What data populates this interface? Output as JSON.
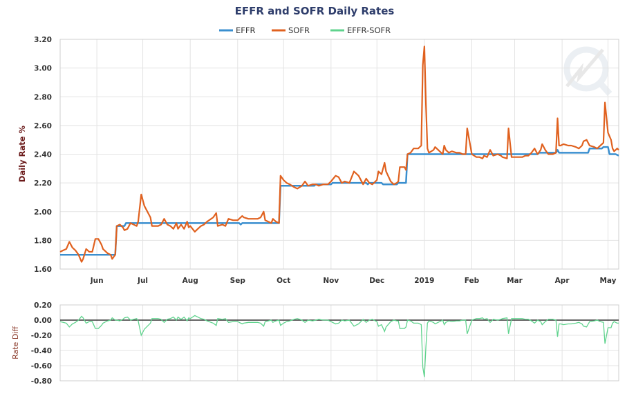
{
  "chart_data": [
    {
      "type": "line",
      "title": "EFFR and SOFR Daily Rates",
      "legend": [
        "EFFR",
        "SOFR",
        "EFFR-SOFR"
      ],
      "legend_position": "top",
      "ylabel": "Daily Rate %",
      "ylim": [
        1.6,
        3.2
      ],
      "yticks": [
        "1.60",
        "1.80",
        "2.00",
        "2.20",
        "2.40",
        "2.60",
        "2.80",
        "3.00",
        "3.20"
      ],
      "x_start": "2018-05-08",
      "x_unit": "days since 2018-05-08",
      "xlim": [
        0,
        365
      ],
      "xticks": [
        {
          "label": "Jun",
          "day": 24
        },
        {
          "label": "Jul",
          "day": 54
        },
        {
          "label": "Aug",
          "day": 85
        },
        {
          "label": "Sep",
          "day": 116
        },
        {
          "label": "Oct",
          "day": 146
        },
        {
          "label": "Nov",
          "day": 177
        },
        {
          "label": "Dec",
          "day": 207
        },
        {
          "label": "2019",
          "day": 238
        },
        {
          "label": "Feb",
          "day": 269
        },
        {
          "label": "Mar",
          "day": 297
        },
        {
          "label": "Apr",
          "day": 328
        },
        {
          "label": "May",
          "day": 358
        }
      ],
      "grid": true,
      "series": [
        {
          "name": "EFFR",
          "color": "#3a8fcf",
          "points": [
            [
              0,
              1.7
            ],
            [
              36,
              1.7
            ],
            [
              37,
              1.9
            ],
            [
              42,
              1.9
            ],
            [
              43,
              1.92
            ],
            [
              117,
              1.92
            ],
            [
              118,
              1.91
            ],
            [
              119,
              1.92
            ],
            [
              143,
              1.92
            ],
            [
              144,
              2.18
            ],
            [
              166,
              2.18
            ],
            [
              167,
              2.19
            ],
            [
              177,
              2.19
            ],
            [
              178,
              2.2
            ],
            [
              200,
              2.2
            ],
            [
              201,
              2.19
            ],
            [
              202,
              2.2
            ],
            [
              210,
              2.2
            ],
            [
              211,
              2.19
            ],
            [
              220,
              2.19
            ],
            [
              221,
              2.2
            ],
            [
              226,
              2.2
            ],
            [
              227,
              2.4
            ],
            [
              312,
              2.4
            ],
            [
              313,
              2.41
            ],
            [
              324,
              2.41
            ],
            [
              325,
              2.43
            ],
            [
              326,
              2.41
            ],
            [
              345,
              2.41
            ],
            [
              346,
              2.44
            ],
            [
              354,
              2.44
            ],
            [
              355,
              2.45
            ],
            [
              358,
              2.45
            ],
            [
              359,
              2.4
            ],
            [
              363,
              2.4
            ],
            [
              365,
              2.39
            ]
          ]
        },
        {
          "name": "SOFR",
          "color": "#e0611f",
          "points": [
            [
              0,
              1.72
            ],
            [
              2,
              1.73
            ],
            [
              4,
              1.74
            ],
            [
              6,
              1.79
            ],
            [
              8,
              1.75
            ],
            [
              10,
              1.73
            ],
            [
              12,
              1.7
            ],
            [
              14,
              1.65
            ],
            [
              15,
              1.67
            ],
            [
              17,
              1.74
            ],
            [
              19,
              1.72
            ],
            [
              21,
              1.72
            ],
            [
              23,
              1.81
            ],
            [
              25,
              1.81
            ],
            [
              27,
              1.77
            ],
            [
              28,
              1.74
            ],
            [
              31,
              1.71
            ],
            [
              33,
              1.7
            ],
            [
              34,
              1.67
            ],
            [
              36,
              1.7
            ],
            [
              37,
              1.9
            ],
            [
              39,
              1.91
            ],
            [
              41,
              1.89
            ],
            [
              42,
              1.87
            ],
            [
              44,
              1.88
            ],
            [
              46,
              1.92
            ],
            [
              48,
              1.91
            ],
            [
              50,
              1.9
            ],
            [
              51,
              1.93
            ],
            [
              53,
              2.12
            ],
            [
              55,
              2.04
            ],
            [
              57,
              2.0
            ],
            [
              59,
              1.96
            ],
            [
              60,
              1.9
            ],
            [
              64,
              1.9
            ],
            [
              66,
              1.91
            ],
            [
              68,
              1.95
            ],
            [
              70,
              1.91
            ],
            [
              72,
              1.9
            ],
            [
              74,
              1.88
            ],
            [
              76,
              1.92
            ],
            [
              77,
              1.88
            ],
            [
              79,
              1.91
            ],
            [
              81,
              1.88
            ],
            [
              83,
              1.93
            ],
            [
              84,
              1.89
            ],
            [
              85,
              1.9
            ],
            [
              88,
              1.86
            ],
            [
              90,
              1.88
            ],
            [
              92,
              1.9
            ],
            [
              94,
              1.91
            ],
            [
              96,
              1.93
            ],
            [
              100,
              1.96
            ],
            [
              102,
              1.99
            ],
            [
              103,
              1.9
            ],
            [
              106,
              1.91
            ],
            [
              108,
              1.9
            ],
            [
              110,
              1.95
            ],
            [
              113,
              1.94
            ],
            [
              116,
              1.94
            ],
            [
              119,
              1.97
            ],
            [
              120,
              1.96
            ],
            [
              123,
              1.95
            ],
            [
              129,
              1.95
            ],
            [
              131,
              1.96
            ],
            [
              133,
              2.0
            ],
            [
              134,
              1.94
            ],
            [
              138,
              1.92
            ],
            [
              139,
              1.95
            ],
            [
              141,
              1.93
            ],
            [
              143,
              1.92
            ],
            [
              144,
              2.25
            ],
            [
              146,
              2.22
            ],
            [
              148,
              2.2
            ],
            [
              150,
              2.19
            ],
            [
              153,
              2.17
            ],
            [
              155,
              2.16
            ],
            [
              158,
              2.18
            ],
            [
              160,
              2.21
            ],
            [
              162,
              2.18
            ],
            [
              165,
              2.19
            ],
            [
              167,
              2.19
            ],
            [
              169,
              2.18
            ],
            [
              172,
              2.19
            ],
            [
              175,
              2.19
            ],
            [
              177,
              2.21
            ],
            [
              180,
              2.25
            ],
            [
              182,
              2.24
            ],
            [
              184,
              2.2
            ],
            [
              186,
              2.21
            ],
            [
              189,
              2.2
            ],
            [
              192,
              2.28
            ],
            [
              195,
              2.25
            ],
            [
              198,
              2.19
            ],
            [
              200,
              2.23
            ],
            [
              202,
              2.2
            ],
            [
              204,
              2.19
            ],
            [
              207,
              2.22
            ],
            [
              208,
              2.28
            ],
            [
              210,
              2.26
            ],
            [
              212,
              2.34
            ],
            [
              213,
              2.28
            ],
            [
              216,
              2.21
            ],
            [
              218,
              2.19
            ],
            [
              220,
              2.2
            ],
            [
              221,
              2.21
            ],
            [
              222,
              2.31
            ],
            [
              225,
              2.31
            ],
            [
              226,
              2.29
            ],
            [
              227,
              2.4
            ],
            [
              229,
              2.41
            ],
            [
              231,
              2.44
            ],
            [
              234,
              2.44
            ],
            [
              236,
              2.46
            ],
            [
              237,
              3.02
            ],
            [
              238,
              3.15
            ],
            [
              239,
              2.75
            ],
            [
              240,
              2.44
            ],
            [
              241,
              2.41
            ],
            [
              244,
              2.43
            ],
            [
              245,
              2.45
            ],
            [
              248,
              2.42
            ],
            [
              250,
              2.4
            ],
            [
              251,
              2.46
            ],
            [
              252,
              2.43
            ],
            [
              254,
              2.41
            ],
            [
              256,
              2.42
            ],
            [
              259,
              2.41
            ],
            [
              261,
              2.41
            ],
            [
              263,
              2.4
            ],
            [
              265,
              2.4
            ],
            [
              266,
              2.58
            ],
            [
              268,
              2.46
            ],
            [
              269,
              2.4
            ],
            [
              272,
              2.38
            ],
            [
              274,
              2.38
            ],
            [
              276,
              2.37
            ],
            [
              277,
              2.39
            ],
            [
              279,
              2.38
            ],
            [
              281,
              2.43
            ],
            [
              283,
              2.39
            ],
            [
              286,
              2.4
            ],
            [
              288,
              2.39
            ],
            [
              289,
              2.38
            ],
            [
              292,
              2.37
            ],
            [
              293,
              2.58
            ],
            [
              295,
              2.38
            ],
            [
              297,
              2.38
            ],
            [
              299,
              2.38
            ],
            [
              302,
              2.38
            ],
            [
              304,
              2.39
            ],
            [
              306,
              2.39
            ],
            [
              308,
              2.41
            ],
            [
              310,
              2.44
            ],
            [
              312,
              2.4
            ],
            [
              314,
              2.43
            ],
            [
              315,
              2.47
            ],
            [
              317,
              2.43
            ],
            [
              319,
              2.4
            ],
            [
              322,
              2.4
            ],
            [
              324,
              2.41
            ],
            [
              325,
              2.65
            ],
            [
              326,
              2.46
            ],
            [
              327,
              2.46
            ],
            [
              329,
              2.47
            ],
            [
              332,
              2.46
            ],
            [
              334,
              2.46
            ],
            [
              337,
              2.45
            ],
            [
              339,
              2.44
            ],
            [
              341,
              2.46
            ],
            [
              342,
              2.49
            ],
            [
              344,
              2.5
            ],
            [
              346,
              2.46
            ],
            [
              349,
              2.45
            ],
            [
              351,
              2.44
            ],
            [
              353,
              2.46
            ],
            [
              355,
              2.48
            ],
            [
              356,
              2.76
            ],
            [
              358,
              2.55
            ],
            [
              360,
              2.5
            ],
            [
              361,
              2.44
            ],
            [
              362,
              2.42
            ],
            [
              364,
              2.44
            ],
            [
              365,
              2.43
            ]
          ]
        }
      ]
    },
    {
      "type": "line",
      "ylabel": "Rate Diff",
      "ylim": [
        -0.8,
        0.2
      ],
      "yticks": [
        "0.20",
        "0.00",
        "-0.20",
        "-0.40",
        "-0.60",
        "-0.80"
      ],
      "series": [
        {
          "name": "EFFR-SOFR",
          "color": "#5fd38d",
          "derived_from": "EFFR minus SOFR"
        }
      ],
      "reference_line": 0
    }
  ]
}
